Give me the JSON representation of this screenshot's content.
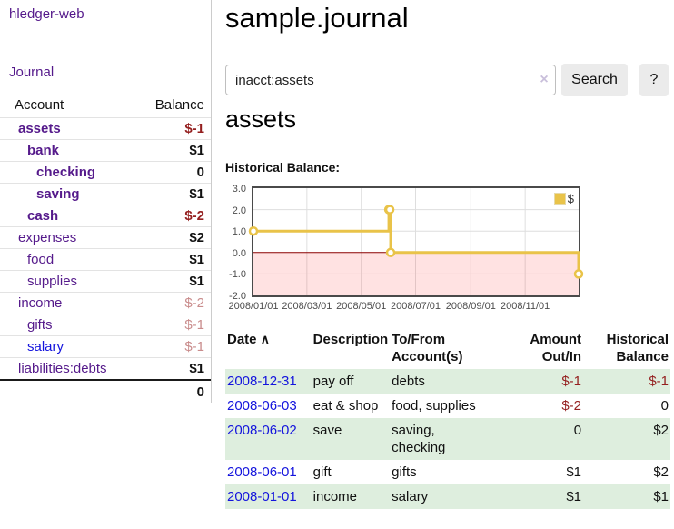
{
  "app": {
    "title": "hledger-web",
    "nav_journal": "Journal"
  },
  "sidebar": {
    "headers": {
      "account": "Account",
      "balance": "Balance"
    },
    "accounts": [
      {
        "name": "assets",
        "balance": "$-1"
      },
      {
        "name": "bank",
        "balance": "$1"
      },
      {
        "name": "checking",
        "balance": "0"
      },
      {
        "name": "saving",
        "balance": "$1"
      },
      {
        "name": "cash",
        "balance": "$-2"
      },
      {
        "name": "expenses",
        "balance": "$2"
      },
      {
        "name": "food",
        "balance": "$1"
      },
      {
        "name": "supplies",
        "balance": "$1"
      },
      {
        "name": "income",
        "balance": "$-2"
      },
      {
        "name": "gifts",
        "balance": "$-1"
      },
      {
        "name": "salary",
        "balance": "$-1"
      },
      {
        "name": "liabilities:debts",
        "balance": "$1"
      }
    ],
    "total": "0"
  },
  "main": {
    "title": "sample.journal",
    "search": {
      "value": "inacct:assets",
      "clear_label": "×",
      "button_label": "Search",
      "help_label": "?"
    },
    "account_heading": "assets",
    "chart_label": "Historical Balance:"
  },
  "journal": {
    "headers": {
      "date": "Date",
      "description": "Description",
      "accounts": "To/From Account(s)",
      "amount": "Amount Out/In",
      "balance": "Historical Balance"
    },
    "sort_indicator": "∧",
    "rows": [
      {
        "date": "2008-12-31",
        "description": "pay off",
        "accounts": "debts",
        "amount": "$-1",
        "balance": "$-1"
      },
      {
        "date": "2008-06-03",
        "description": "eat & shop",
        "accounts": "food, supplies",
        "amount": "$-2",
        "balance": "0"
      },
      {
        "date": "2008-06-02",
        "description": "save",
        "accounts": "saving, checking",
        "amount": "0",
        "balance": "$2"
      },
      {
        "date": "2008-06-01",
        "description": "gift",
        "accounts": "gifts",
        "amount": "$1",
        "balance": "$2"
      },
      {
        "date": "2008-01-01",
        "description": "income",
        "accounts": "salary",
        "amount": "$1",
        "balance": "$1"
      }
    ]
  },
  "chart_data": {
    "type": "line",
    "step": true,
    "title": "Historical Balance:",
    "series": [
      {
        "name": "$",
        "color": "#e9c349",
        "points": [
          [
            "2008-01-01",
            1
          ],
          [
            "2008-06-01",
            2
          ],
          [
            "2008-06-02",
            2
          ],
          [
            "2008-06-03",
            0
          ],
          [
            "2008-12-31",
            -1
          ]
        ]
      }
    ],
    "xlim": [
      "2008-01-01",
      "2008-12-31"
    ],
    "ylim": [
      -2,
      3
    ],
    "y_ticks": [
      "-2.0",
      "-1.0",
      "0.0",
      "1.0",
      "2.0",
      "3.0"
    ],
    "x_ticks": [
      "2008/01/01",
      "2008/03/01",
      "2008/05/01",
      "2008/07/01",
      "2008/09/01",
      "2008/11/01"
    ],
    "legend_position": "top-right",
    "negative_region": true,
    "grid": true
  },
  "colors": {
    "purple_link": "#551a8b",
    "blue_link": "#1414dd",
    "negative_dark": "#941f1f",
    "negative_dim": "#c98c8c",
    "row_green": "#deeede",
    "chart_gold": "#e9c349",
    "chart_zero_line": "#8b0000",
    "chart_negative_fill": "rgba(255,30,30,0.13)",
    "chart_border": "#4a4a4a",
    "grid_line": "#dedede",
    "divider": "#cccccc",
    "button_bg": "#ebebeb",
    "clear_icon": "#c9bfdb"
  }
}
